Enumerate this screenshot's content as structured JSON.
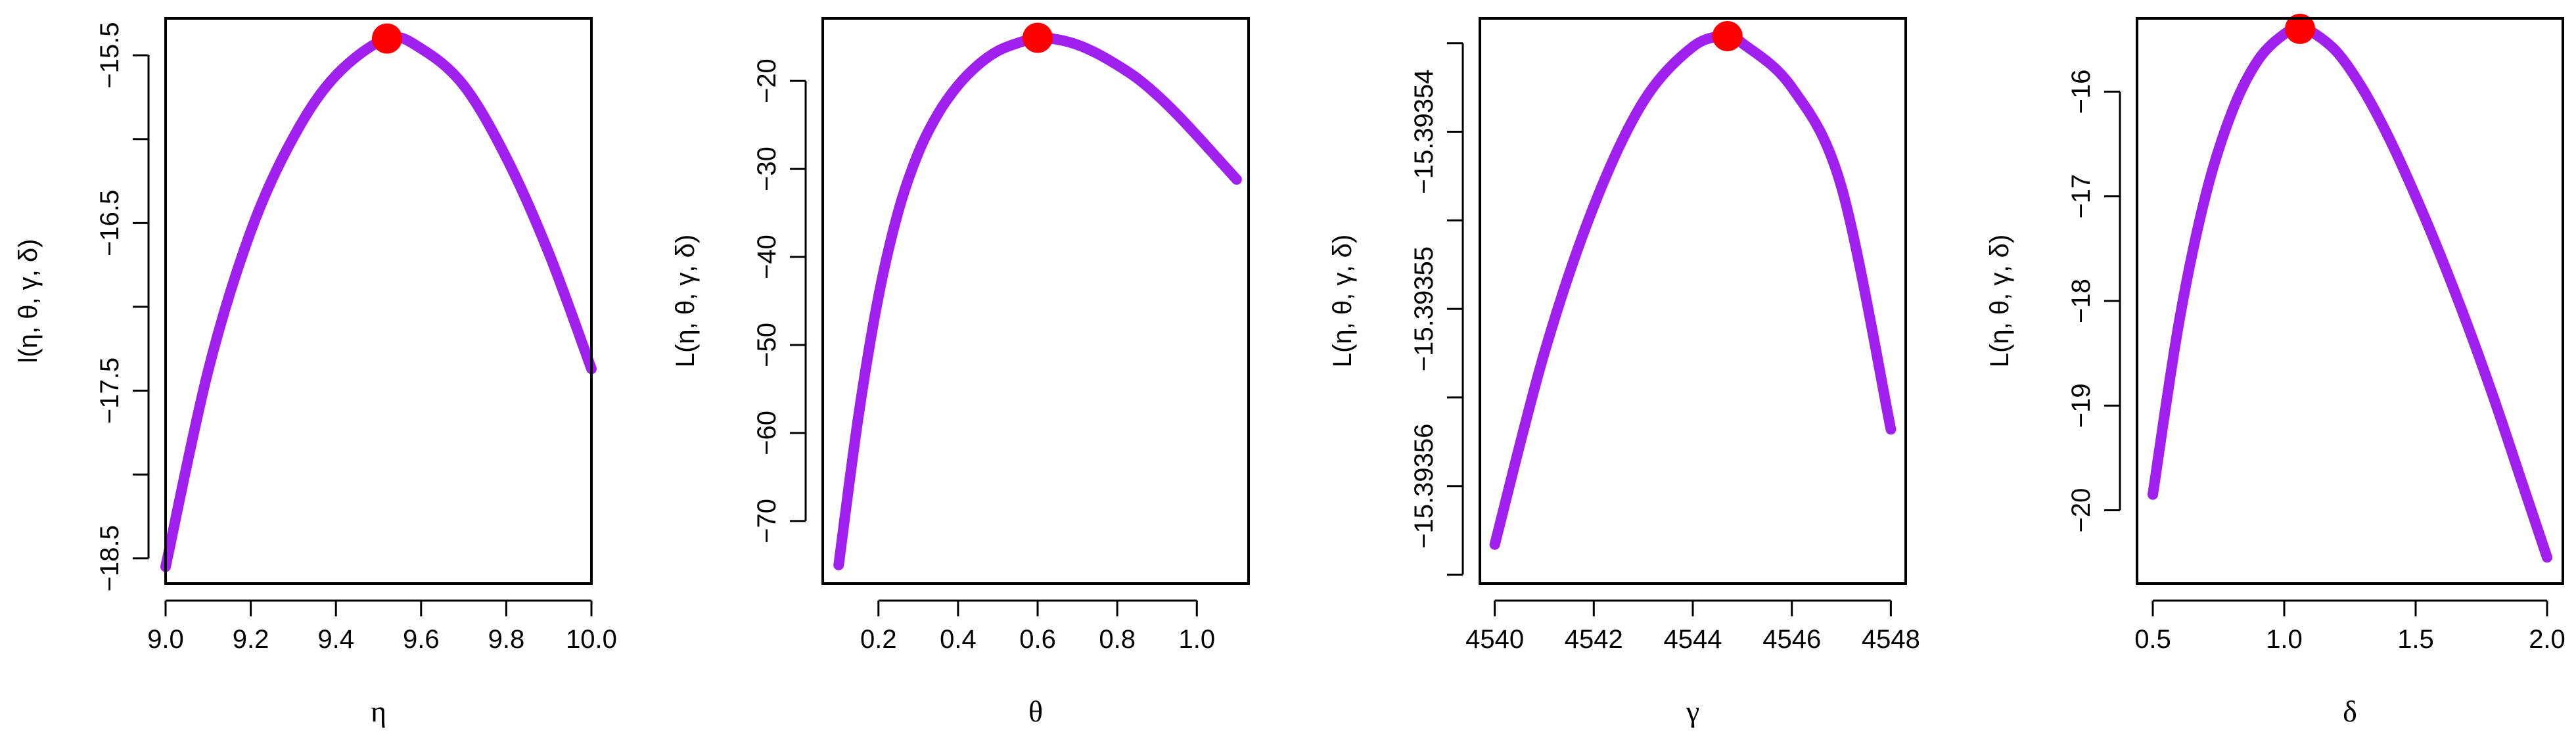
{
  "chart_data": [
    {
      "type": "line",
      "xlabel": "η",
      "ylabel": "l(η, θ, γ, δ)",
      "xlim": [
        9.0,
        10.0
      ],
      "ylim": [
        -18.65,
        -15.28
      ],
      "xticks": [
        9.0,
        9.2,
        9.4,
        9.6,
        9.8,
        10.0
      ],
      "xtick_labels": [
        "9.0",
        "9.2",
        "9.4",
        "9.6",
        "9.8",
        "10.0"
      ],
      "yticks": [
        -15.5,
        -16.0,
        -16.5,
        -17.0,
        -17.5,
        -18.0,
        -18.5
      ],
      "ytick_labels": [
        "−15.5",
        "",
        "−16.5",
        "",
        "−17.5",
        "",
        "−18.5"
      ],
      "x": [
        9.0,
        9.1,
        9.2,
        9.3,
        9.4,
        9.52,
        9.6,
        9.7,
        9.8,
        9.9,
        10.0
      ],
      "y": [
        -18.55,
        -17.38,
        -16.55,
        -15.99,
        -15.62,
        -15.4,
        -15.46,
        -15.68,
        -16.11,
        -16.68,
        -17.37
      ],
      "line_color": "#a020f0",
      "optimum": {
        "x": 9.52,
        "y": -15.4,
        "color": "#ff0000"
      }
    },
    {
      "type": "line",
      "xlabel": "θ",
      "ylabel": "L(η, θ, γ, δ)",
      "xlim": [
        0.06,
        1.13
      ],
      "ylim": [
        -77.1,
        -12.9
      ],
      "xticks": [
        0.2,
        0.4,
        0.6,
        0.8,
        1.0
      ],
      "xtick_labels": [
        "0.2",
        "0.4",
        "0.6",
        "0.8",
        "1.0"
      ],
      "yticks": [
        -20,
        -30,
        -40,
        -50,
        -60,
        -70
      ],
      "ytick_labels": [
        "−20",
        "−30",
        "−40",
        "−50",
        "−60",
        "−70"
      ],
      "x": [
        0.1,
        0.15,
        0.2,
        0.25,
        0.3,
        0.35,
        0.4,
        0.45,
        0.5,
        0.55,
        0.6,
        0.65,
        0.7,
        0.75,
        0.8,
        0.85,
        0.9,
        0.95,
        1.0,
        1.05,
        1.1
      ],
      "y": [
        -75.0,
        -58.0,
        -44.5,
        -34.8,
        -28.2,
        -23.7,
        -20.5,
        -18.2,
        -16.6,
        -15.7,
        -15.1,
        -15.3,
        -15.9,
        -16.9,
        -18.2,
        -19.7,
        -21.6,
        -23.8,
        -26.2,
        -28.7,
        -31.2
      ],
      "line_color": "#a020f0",
      "optimum": {
        "x": 0.6,
        "y": -15.1,
        "color": "#ff0000"
      }
    },
    {
      "type": "line",
      "xlabel": "γ",
      "ylabel": "L(η, θ, γ, δ)",
      "xlim": [
        4539.7,
        4548.3
      ],
      "ylim": [
        -15.3935655,
        -15.3935336
      ],
      "xticks": [
        4540,
        4542,
        4544,
        4546,
        4548
      ],
      "xtick_labels": [
        "4540",
        "4542",
        "4544",
        "4546",
        "4548"
      ],
      "yticks": [
        -15.393535,
        -15.39354,
        -15.393545,
        -15.39355,
        -15.393555,
        -15.39356,
        -15.393565
      ],
      "ytick_labels": [
        "",
        "−15.39354",
        "",
        "−15.39355",
        "",
        "−15.39356",
        ""
      ],
      "x": [
        4540.0,
        4541.0,
        4542.0,
        4543.0,
        4544.0,
        4544.7,
        4545.0,
        4546.0,
        4547.0,
        4548.0
      ],
      "y": [
        -15.3935633,
        -15.3935525,
        -15.3935442,
        -15.3935383,
        -15.3935352,
        -15.3935346,
        -15.393535,
        -15.3935375,
        -15.3935431,
        -15.3935568
      ],
      "line_color": "#a020f0",
      "optimum": {
        "x": 4544.7,
        "y": -15.3935346,
        "color": "#ff0000"
      }
    },
    {
      "type": "line",
      "xlabel": "δ",
      "ylabel": "L(η, θ, γ, δ)",
      "xlim": [
        0.44,
        2.06
      ],
      "ylim": [
        -20.7,
        -15.3
      ],
      "xticks": [
        0.5,
        1.0,
        1.5,
        2.0
      ],
      "xtick_labels": [
        "0.5",
        "1.0",
        "1.5",
        "2.0"
      ],
      "yticks": [
        -16,
        -17,
        -18,
        -19,
        -20
      ],
      "ytick_labels": [
        "−16",
        "−17",
        "−18",
        "−19",
        "−20"
      ],
      "x": [
        0.5,
        0.6,
        0.7,
        0.8,
        0.9,
        1.0,
        1.06,
        1.1,
        1.2,
        1.3,
        1.4,
        1.5,
        1.6,
        1.7,
        1.8,
        1.9,
        2.0
      ],
      "y": [
        -19.85,
        -18.2,
        -17.0,
        -16.2,
        -15.7,
        -15.45,
        -15.4,
        -15.42,
        -15.62,
        -15.98,
        -16.45,
        -17.0,
        -17.6,
        -18.25,
        -18.95,
        -19.7,
        -20.45
      ],
      "line_color": "#a020f0",
      "optimum": {
        "x": 1.06,
        "y": -15.4,
        "color": "#ff0000"
      }
    }
  ]
}
